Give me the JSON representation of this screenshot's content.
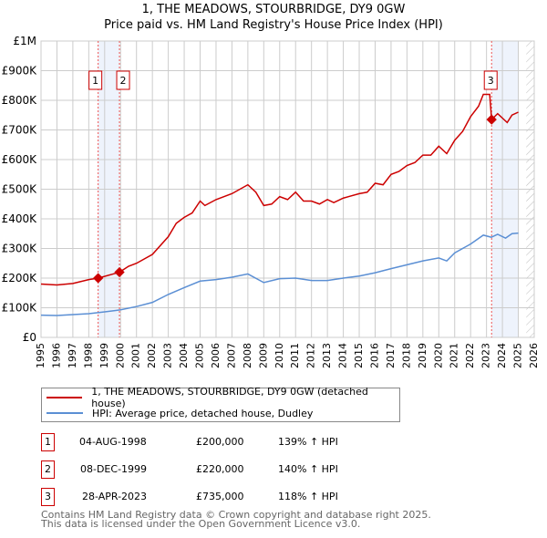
{
  "chart_data": {
    "type": "line",
    "title": "1, THE MEADOWS, STOURBRIDGE, DY9 0GW",
    "subtitle": "Price paid vs. HM Land Registry's House Price Index (HPI)",
    "xlim": [
      1995,
      2026
    ],
    "ylim": [
      0,
      1000000
    ],
    "x_ticks": [
      "1995",
      "1996",
      "1997",
      "1998",
      "1999",
      "2000",
      "2001",
      "2002",
      "2003",
      "2004",
      "2005",
      "2006",
      "2007",
      "2008",
      "2009",
      "2010",
      "2011",
      "2012",
      "2013",
      "2014",
      "2015",
      "2016",
      "2017",
      "2018",
      "2019",
      "2020",
      "2021",
      "2022",
      "2023",
      "2024",
      "2025",
      "2026"
    ],
    "y_ticks": [
      {
        "v": 0,
        "label": "£0"
      },
      {
        "v": 100000,
        "label": "£100K"
      },
      {
        "v": 200000,
        "label": "£200K"
      },
      {
        "v": 300000,
        "label": "£300K"
      },
      {
        "v": 400000,
        "label": "£400K"
      },
      {
        "v": 500000,
        "label": "£500K"
      },
      {
        "v": 600000,
        "label": "£600K"
      },
      {
        "v": 700000,
        "label": "£700K"
      },
      {
        "v": 800000,
        "label": "£800K"
      },
      {
        "v": 900000,
        "label": "£900K"
      },
      {
        "v": 1000000,
        "label": "£1M"
      }
    ],
    "grid": true,
    "series": [
      {
        "name": "1, THE MEADOWS, STOURBRIDGE, DY9 0GW (detached house)",
        "color": "#cc0000",
        "x": [
          1995,
          1996,
          1997,
          1998,
          1998.6,
          1999.93,
          2000.5,
          2001,
          2002,
          2003,
          2003.5,
          2004,
          2004.5,
          2005,
          2005.3,
          2006,
          2007,
          2008,
          2008.5,
          2009,
          2009.5,
          2010,
          2010.5,
          2011,
          2011.5,
          2012,
          2012.5,
          2013,
          2013.4,
          2014,
          2015,
          2015.5,
          2016,
          2016.5,
          2017,
          2017.5,
          2018,
          2018.5,
          2019,
          2019.5,
          2020,
          2020.5,
          2021,
          2021.5,
          2022,
          2022.5,
          2022.8,
          2023.2,
          2023.32,
          2023.7,
          2024,
          2024.3,
          2024.6,
          2025
        ],
        "values": [
          180000,
          177000,
          182000,
          195000,
          200000,
          220000,
          240000,
          250000,
          280000,
          340000,
          385000,
          405000,
          420000,
          460000,
          445000,
          465000,
          485000,
          515000,
          490000,
          445000,
          450000,
          475000,
          465000,
          490000,
          460000,
          460000,
          450000,
          465000,
          455000,
          470000,
          485000,
          490000,
          520000,
          515000,
          550000,
          560000,
          580000,
          590000,
          615000,
          615000,
          645000,
          620000,
          665000,
          695000,
          745000,
          780000,
          820000,
          820000,
          735000,
          755000,
          740000,
          725000,
          750000,
          760000
        ]
      },
      {
        "name": "HPI: Average price, detached house, Dudley",
        "color": "#5b8fd4",
        "x": [
          1995,
          1996,
          1997,
          1998,
          1999,
          2000,
          2001,
          2002,
          2003,
          2004,
          2005,
          2006,
          2007,
          2008,
          2009,
          2010,
          2011,
          2012,
          2013,
          2014,
          2015,
          2016,
          2017,
          2018,
          2019,
          2020,
          2020.5,
          2021,
          2022,
          2022.8,
          2023.3,
          2023.7,
          2024.2,
          2024.6,
          2025
        ],
        "values": [
          75000,
          74000,
          77000,
          80000,
          86000,
          93000,
          104000,
          118000,
          145000,
          168000,
          190000,
          195000,
          203000,
          214000,
          185000,
          198000,
          200000,
          192000,
          192000,
          200000,
          207000,
          218000,
          232000,
          245000,
          258000,
          268000,
          258000,
          285000,
          315000,
          345000,
          338000,
          348000,
          335000,
          350000,
          352000
        ]
      }
    ],
    "sales": [
      {
        "id": "1",
        "x": 1998.59,
        "price": 200000,
        "date": "04-AUG-1998",
        "price_label": "£200,000",
        "hpi": "139% ↑ HPI"
      },
      {
        "id": "2",
        "x": 1999.93,
        "price": 220000,
        "date": "08-DEC-1999",
        "price_label": "£220,000",
        "hpi": "140% ↑ HPI"
      },
      {
        "id": "3",
        "x": 2023.32,
        "price": 735000,
        "date": "28-APR-2023",
        "price_label": "£735,000",
        "hpi": "118% ↑ HPI"
      }
    ],
    "shaded_ranges": [
      [
        1998.59,
        1999.93
      ],
      [
        2023.32,
        2025.0
      ]
    ],
    "forecast_from": 2025.5
  },
  "footer": {
    "line1": "Contains HM Land Registry data © Crown copyright and database right 2025.",
    "line2": "This data is licensed under the Open Government Licence v3.0."
  }
}
